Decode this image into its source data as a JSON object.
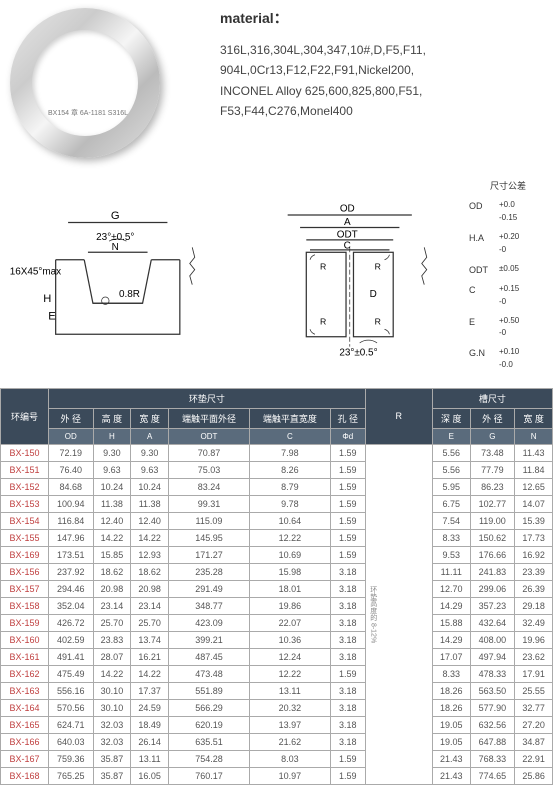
{
  "material": {
    "title": "material：",
    "body": "316L,316,304L,304,347,10#,D,F5,F11,\n904L,0Cr13,F12,F22,F91,Nickel200,\nINCONEL Alloy 625,600,825,800,F51,\nF53,F44,C276,Monel400"
  },
  "ring_marking": "BX154 章 6A-1181  S316L",
  "diagram_labels": {
    "g": "G",
    "od": "OD",
    "a": "A",
    "odt": "ODT",
    "c": "C",
    "n": "N",
    "angle1": "23°±0.5°",
    "angle2": "23°±0.5°",
    "radius": "0.8R",
    "chamfer": "16X45°max",
    "h": "H",
    "r": "R",
    "d": "D",
    "e": "E"
  },
  "tolerances": {
    "title": "尺寸公差",
    "rows": [
      {
        "lbl": "OD",
        "val": "+0.0\n-0.15"
      },
      {
        "lbl": "H.A",
        "val": "+0.20\n-0"
      },
      {
        "lbl": "ODT",
        "val": "±0.05"
      },
      {
        "lbl": "C",
        "val": "+0.15\n-0"
      },
      {
        "lbl": "E",
        "val": "+0.50\n-0"
      },
      {
        "lbl": "G.N",
        "val": "+0.10\n-0.0"
      }
    ]
  },
  "table": {
    "group1": "环垫尺寸",
    "group2": "槽尺寸",
    "col_id": "环编号",
    "headers": [
      {
        "cn": "外 径",
        "en": "OD"
      },
      {
        "cn": "高 度",
        "en": "H"
      },
      {
        "cn": "宽 度",
        "en": "A"
      },
      {
        "cn": "端触平面外径",
        "en": "ODT"
      },
      {
        "cn": "端触平直宽度",
        "en": "C"
      },
      {
        "cn": "孔 径",
        "en": "Φd"
      },
      {
        "cn": "",
        "en": "R"
      },
      {
        "cn": "深 度",
        "en": "E"
      },
      {
        "cn": "外 径",
        "en": "G"
      },
      {
        "cn": "宽 度",
        "en": "N"
      }
    ],
    "vert_note": "环垫高度的 8-12%",
    "rows": [
      {
        "id": "BX-150",
        "v": [
          "72.19",
          "9.30",
          "9.30",
          "70.87",
          "7.98",
          "1.59",
          "",
          "5.56",
          "73.48",
          "11.43"
        ]
      },
      {
        "id": "BX-151",
        "v": [
          "76.40",
          "9.63",
          "9.63",
          "75.03",
          "8.26",
          "1.59",
          "",
          "5.56",
          "77.79",
          "11.84"
        ]
      },
      {
        "id": "BX-152",
        "v": [
          "84.68",
          "10.24",
          "10.24",
          "83.24",
          "8.79",
          "1.59",
          "",
          "5.95",
          "86.23",
          "12.65"
        ]
      },
      {
        "id": "BX-153",
        "v": [
          "100.94",
          "11.38",
          "11.38",
          "99.31",
          "9.78",
          "1.59",
          "",
          "6.75",
          "102.77",
          "14.07"
        ]
      },
      {
        "id": "BX-154",
        "v": [
          "116.84",
          "12.40",
          "12.40",
          "115.09",
          "10.64",
          "1.59",
          "",
          "7.54",
          "119.00",
          "15.39"
        ]
      },
      {
        "id": "BX-155",
        "v": [
          "147.96",
          "14.22",
          "14.22",
          "145.95",
          "12.22",
          "1.59",
          "",
          "8.33",
          "150.62",
          "17.73"
        ]
      },
      {
        "id": "BX-169",
        "v": [
          "173.51",
          "15.85",
          "12.93",
          "171.27",
          "10.69",
          "1.59",
          "",
          "9.53",
          "176.66",
          "16.92"
        ]
      },
      {
        "id": "BX-156",
        "v": [
          "237.92",
          "18.62",
          "18.62",
          "235.28",
          "15.98",
          "3.18",
          "",
          "11.11",
          "241.83",
          "23.39"
        ]
      },
      {
        "id": "BX-157",
        "v": [
          "294.46",
          "20.98",
          "20.98",
          "291.49",
          "18.01",
          "3.18",
          "",
          "12.70",
          "299.06",
          "26.39"
        ]
      },
      {
        "id": "BX-158",
        "v": [
          "352.04",
          "23.14",
          "23.14",
          "348.77",
          "19.86",
          "3.18",
          "",
          "14.29",
          "357.23",
          "29.18"
        ]
      },
      {
        "id": "BX-159",
        "v": [
          "426.72",
          "25.70",
          "25.70",
          "423.09",
          "22.07",
          "3.18",
          "",
          "15.88",
          "432.64",
          "32.49"
        ]
      },
      {
        "id": "BX-160",
        "v": [
          "402.59",
          "23.83",
          "13.74",
          "399.21",
          "10.36",
          "3.18",
          "",
          "14.29",
          "408.00",
          "19.96"
        ]
      },
      {
        "id": "BX-161",
        "v": [
          "491.41",
          "28.07",
          "16.21",
          "487.45",
          "12.24",
          "3.18",
          "",
          "17.07",
          "497.94",
          "23.62"
        ]
      },
      {
        "id": "BX-162",
        "v": [
          "475.49",
          "14.22",
          "14.22",
          "473.48",
          "12.22",
          "1.59",
          "",
          "8.33",
          "478.33",
          "17.91"
        ]
      },
      {
        "id": "BX-163",
        "v": [
          "556.16",
          "30.10",
          "17.37",
          "551.89",
          "13.11",
          "3.18",
          "",
          "18.26",
          "563.50",
          "25.55"
        ]
      },
      {
        "id": "BX-164",
        "v": [
          "570.56",
          "30.10",
          "24.59",
          "566.29",
          "20.32",
          "3.18",
          "",
          "18.26",
          "577.90",
          "32.77"
        ]
      },
      {
        "id": "BX-165",
        "v": [
          "624.71",
          "32.03",
          "18.49",
          "620.19",
          "13.97",
          "3.18",
          "",
          "19.05",
          "632.56",
          "27.20"
        ]
      },
      {
        "id": "BX-166",
        "v": [
          "640.03",
          "32.03",
          "26.14",
          "635.51",
          "21.62",
          "3.18",
          "",
          "19.05",
          "647.88",
          "34.87"
        ]
      },
      {
        "id": "BX-167",
        "v": [
          "759.36",
          "35.87",
          "13.11",
          "754.28",
          "8.03",
          "1.59",
          "",
          "21.43",
          "768.33",
          "22.91"
        ]
      },
      {
        "id": "BX-168",
        "v": [
          "765.25",
          "35.87",
          "16.05",
          "760.17",
          "10.97",
          "1.59",
          "",
          "21.43",
          "774.65",
          "25.86"
        ]
      }
    ]
  }
}
